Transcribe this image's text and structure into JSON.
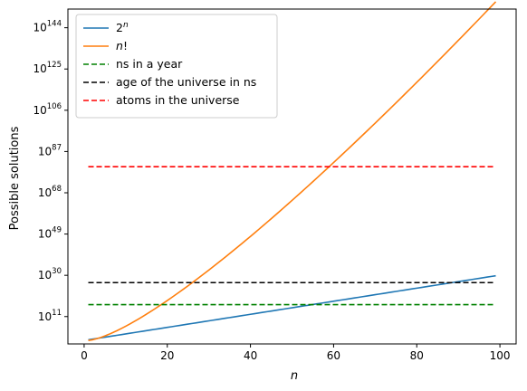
{
  "chart_data": {
    "type": "line",
    "title": "",
    "xlabel": "n",
    "ylabel": "Possible solutions",
    "xlim": [
      -3.9,
      103.9
    ],
    "ylim_exponent": [
      -1.6,
      152.6
    ],
    "yscale": "log",
    "grid": false,
    "legend_position": "top-left",
    "x_ticks": [
      0,
      20,
      40,
      60,
      80,
      100
    ],
    "x_tick_labels": [
      "0",
      "20",
      "40",
      "60",
      "80",
      "100"
    ],
    "y_tick_exponents": [
      11,
      30,
      49,
      68,
      87,
      106,
      125,
      144
    ],
    "y_tick_labels": [
      {
        "base": "10",
        "exp": "11"
      },
      {
        "base": "10",
        "exp": "30"
      },
      {
        "base": "10",
        "exp": "49"
      },
      {
        "base": "10",
        "exp": "68"
      },
      {
        "base": "10",
        "exp": "87"
      },
      {
        "base": "10",
        "exp": "106"
      },
      {
        "base": "10",
        "exp": "125"
      },
      {
        "base": "10",
        "exp": "144"
      }
    ],
    "n_range": [
      1,
      99
    ],
    "series": [
      {
        "name": "2^n",
        "legend": {
          "base": "2",
          "exp": "n",
          "suffix": ""
        },
        "color": "#1f77b4",
        "style": "solid",
        "formula": "power_of_two"
      },
      {
        "name": "n!",
        "legend": {
          "base": "n",
          "exp": "",
          "suffix": "!"
        },
        "color": "#ff7f0e",
        "style": "solid",
        "formula": "factorial"
      },
      {
        "name": "ns in a year",
        "legend": {
          "base": "ns in a year",
          "exp": "",
          "suffix": ""
        },
        "color": "#008000",
        "style": "dashed",
        "constant_exponent": 16.5
      },
      {
        "name": "age of the universe in ns",
        "legend": {
          "base": "age of the universe in ns",
          "exp": "",
          "suffix": ""
        },
        "color": "#000000",
        "style": "dashed",
        "constant_exponent": 26.64
      },
      {
        "name": "atoms in the universe",
        "legend": {
          "base": "atoms in the universe",
          "exp": "",
          "suffix": ""
        },
        "color": "#ff0000",
        "style": "dashed",
        "constant_exponent": 80
      }
    ]
  }
}
